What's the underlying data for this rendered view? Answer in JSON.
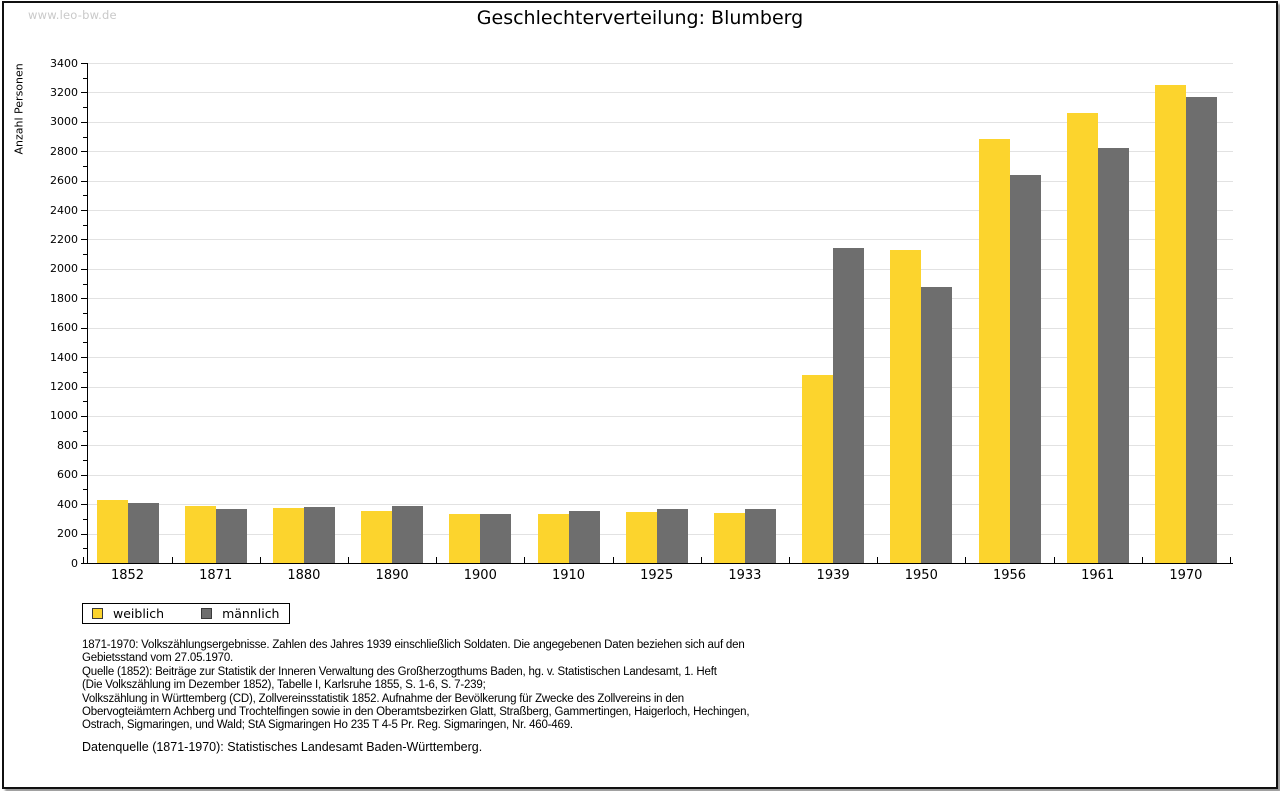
{
  "watermark": "www.leo-bw.de",
  "title": "Geschlechterverteilung: Blumberg",
  "colors": {
    "weiblich": "#fcd42d",
    "maennlich": "#6e6e6e",
    "grid": "#e2e2e2",
    "axis": "#000000",
    "watermark": "#c9c9c9"
  },
  "chart_data": {
    "type": "bar",
    "title": "Geschlechterverteilung: Blumberg",
    "xlabel": "",
    "ylabel": "Anzahl Personen",
    "categories": [
      "1852",
      "1871",
      "1880",
      "1890",
      "1900",
      "1910",
      "1925",
      "1933",
      "1939",
      "1950",
      "1956",
      "1961",
      "1970"
    ],
    "series": [
      {
        "name": "weiblich",
        "color": "#fcd42d",
        "values": [
          430,
          390,
          375,
          355,
          330,
          335,
          350,
          340,
          1280,
          2130,
          2880,
          3060,
          3250
        ]
      },
      {
        "name": "männlich",
        "color": "#6e6e6e",
        "values": [
          410,
          365,
          380,
          385,
          330,
          355,
          365,
          365,
          2140,
          1880,
          2640,
          2820,
          3170
        ]
      }
    ],
    "ylim": [
      0,
      3400
    ],
    "ytick_step": 200,
    "yminor_step": 100,
    "grid": true,
    "legend_position": "bottom-left"
  },
  "legend": {
    "items": [
      {
        "label": "weiblich",
        "color": "#fcd42d"
      },
      {
        "label": "männlich",
        "color": "#6e6e6e"
      }
    ]
  },
  "footer": {
    "source_lines": [
      "1871-1970: Volkszählungsergebnisse. Zahlen des Jahres 1939 einschließlich Soldaten. Die angegebenen Daten beziehen sich auf den",
      "Gebietsstand vom 27.05.1970.",
      "Quelle (1852): Beiträge zur Statistik der Inneren Verwaltung des Großherzogthums Baden, hg. v. Statistischen Landesamt, 1. Heft",
      "(Die Volkszählung im Dezember 1852), Tabelle I, Karlsruhe 1855, S. 1-6, S. 7-239;",
      "Volkszählung in Württemberg (CD), Zollvereinsstatistik 1852. Aufnahme der Bevölkerung für Zwecke des Zollvereins in den",
      "Obervogteiämtern Achberg und Trochtelfingen sowie in den Oberamtsbezirken Glatt, Straßberg, Gammertingen, Haigerloch, Hechingen,",
      "Ostrach, Sigmaringen, und Wald; StA Sigmaringen Ho 235 T 4-5 Pr. Reg. Sigmaringen, Nr. 460-469."
    ],
    "datenquelle": "Datenquelle (1871-1970): Statistisches Landesamt Baden-Württemberg."
  }
}
